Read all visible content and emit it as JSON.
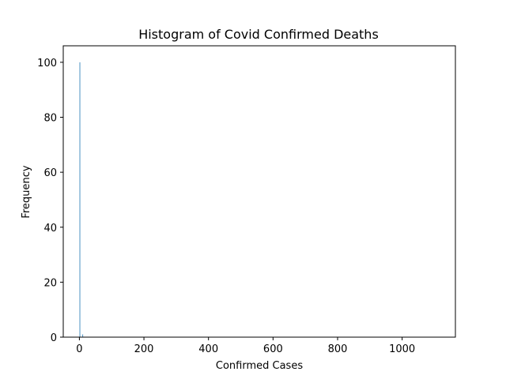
{
  "chart_data": {
    "type": "bar",
    "title": "Histogram of Covid Confirmed Deaths",
    "xlabel": "Confirmed Cases",
    "ylabel": "Frequency",
    "xlim": [
      -50,
      1165
    ],
    "ylim": [
      0,
      106
    ],
    "x_ticks": [
      "0",
      "200",
      "400",
      "600",
      "800",
      "1000"
    ],
    "x_tick_values": [
      0,
      200,
      400,
      600,
      800,
      1000
    ],
    "y_ticks": [
      "0",
      "20",
      "40",
      "60",
      "80",
      "100"
    ],
    "y_tick_values": [
      0,
      20,
      40,
      60,
      80,
      100
    ],
    "bars": [
      {
        "x0": 0.5,
        "x1": 1.5,
        "value": 100
      },
      {
        "x0": 9.5,
        "x1": 10.5,
        "value": 1
      }
    ],
    "bar_color": "#1f77b4",
    "grid": false
  }
}
